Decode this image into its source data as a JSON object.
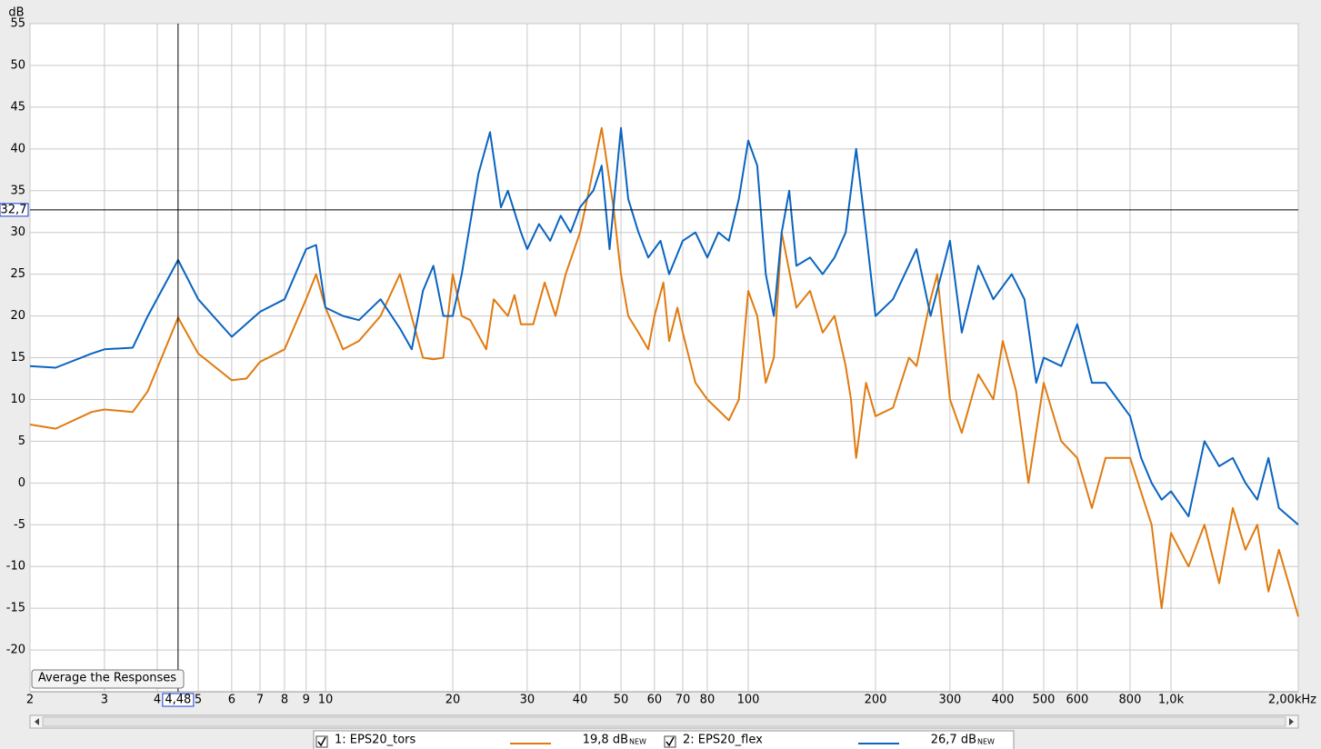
{
  "chart_data": {
    "type": "line",
    "ylabel": "dB",
    "xscale": "log",
    "grid": true,
    "xlim": [
      2,
      2000
    ],
    "ylim": [
      -25,
      55
    ],
    "xticks": [
      2,
      3,
      4,
      5,
      6,
      7,
      8,
      9,
      10,
      20,
      30,
      40,
      50,
      60,
      70,
      80,
      100,
      200,
      300,
      400,
      500,
      600,
      800,
      {
        "value": 1000,
        "label": "1,0k"
      },
      {
        "value": 2000,
        "label": "2,00kHz"
      }
    ],
    "yticks": [
      55,
      50,
      45,
      40,
      35,
      30,
      25,
      20,
      15,
      10,
      5,
      0,
      -5,
      -10,
      -15,
      -20
    ],
    "cursor": {
      "x": {
        "value": 4.48,
        "label": "4,48"
      },
      "y": {
        "value": 32.7,
        "label": "32,7"
      }
    },
    "series": [
      {
        "name": "1: EPS20_tors",
        "color": "#e07b10",
        "cursor_value": {
          "value": 19.8,
          "label": "19,8 dB"
        },
        "tag": "NEW",
        "x": [
          2,
          2.3,
          2.8,
          3,
          3.5,
          3.8,
          4.48,
          5,
          6,
          6.5,
          7,
          8,
          9,
          9.5,
          10,
          11,
          12,
          13.5,
          15,
          17,
          18,
          19,
          20,
          21,
          22,
          24,
          25,
          27,
          28,
          29,
          31,
          33,
          35,
          37,
          40,
          42,
          45,
          48,
          50,
          52,
          55,
          58,
          60,
          63,
          65,
          68,
          70,
          75,
          80,
          90,
          95,
          100,
          105,
          110,
          115,
          120,
          130,
          140,
          150,
          160,
          170,
          175,
          180,
          190,
          200,
          220,
          240,
          250,
          270,
          280,
          300,
          320,
          350,
          380,
          400,
          430,
          460,
          500,
          550,
          600,
          650,
          700,
          800,
          900,
          950,
          1000,
          1100,
          1200,
          1300,
          1400,
          1500,
          1600,
          1700,
          1800,
          2000
        ],
        "values": [
          7,
          6.5,
          8.5,
          8.8,
          8.5,
          11,
          19.8,
          15.5,
          12.3,
          12.5,
          14.5,
          16,
          22,
          25,
          21,
          16,
          17,
          20,
          25,
          15,
          14.8,
          15,
          25,
          20,
          19.5,
          16,
          22,
          20,
          22.5,
          19,
          19,
          24,
          20,
          25,
          30,
          35,
          42.5,
          33,
          25,
          20,
          18,
          16,
          20,
          24,
          17,
          21,
          18,
          12,
          10,
          7.5,
          10,
          23,
          20,
          12,
          15,
          30,
          21,
          23,
          18,
          20,
          14,
          10,
          3,
          12,
          8,
          9,
          15,
          14,
          22,
          25,
          10,
          6,
          13,
          10,
          17,
          11,
          0,
          12,
          5,
          3,
          -3,
          3,
          3,
          -5,
          -15,
          -6,
          -10,
          -5,
          -12,
          -3,
          -8,
          -5,
          -13,
          -8,
          -16
        ]
      },
      {
        "name": "2: EPS20_flex",
        "color": "#0a64c0",
        "cursor_value": {
          "value": 26.7,
          "label": "26,7 dB"
        },
        "tag": "NEW",
        "x": [
          2,
          2.3,
          2.8,
          3,
          3.5,
          3.8,
          4.48,
          5,
          6,
          7,
          8,
          9,
          9.5,
          10,
          11,
          12,
          13.5,
          15,
          16,
          17,
          18,
          19,
          20,
          21,
          23,
          24.5,
          26,
          27,
          29,
          30,
          32,
          34,
          36,
          38,
          40,
          43,
          45,
          47,
          50,
          52,
          55,
          58,
          62,
          65,
          70,
          75,
          80,
          85,
          90,
          95,
          100,
          105,
          110,
          115,
          120,
          125,
          130,
          140,
          150,
          160,
          170,
          180,
          190,
          200,
          220,
          250,
          270,
          300,
          320,
          350,
          380,
          420,
          450,
          480,
          500,
          550,
          600,
          650,
          700,
          800,
          850,
          900,
          950,
          1000,
          1100,
          1200,
          1300,
          1400,
          1500,
          1600,
          1700,
          1800,
          2000
        ],
        "values": [
          14,
          13.8,
          15.5,
          16,
          16.2,
          20,
          26.7,
          22,
          17.5,
          20.5,
          22,
          28,
          28.5,
          21,
          20,
          19.5,
          22,
          18.5,
          16,
          23,
          26,
          20,
          20,
          25,
          37,
          42,
          33,
          35,
          30,
          28,
          31,
          29,
          32,
          30,
          33,
          35,
          38,
          28,
          42.5,
          34,
          30,
          27,
          29,
          25,
          29,
          30,
          27,
          30,
          29,
          34,
          41,
          38,
          25,
          20,
          30,
          35,
          26,
          27,
          25,
          27,
          30,
          40,
          30,
          20,
          22,
          28,
          20,
          29,
          18,
          26,
          22,
          25,
          22,
          12,
          15,
          14,
          19,
          12,
          12,
          8,
          3,
          0,
          -2,
          -1,
          -4,
          5,
          2,
          3,
          0,
          -2,
          3,
          -3,
          -5
        ]
      }
    ]
  },
  "ui": {
    "button": "Average the Responses"
  }
}
